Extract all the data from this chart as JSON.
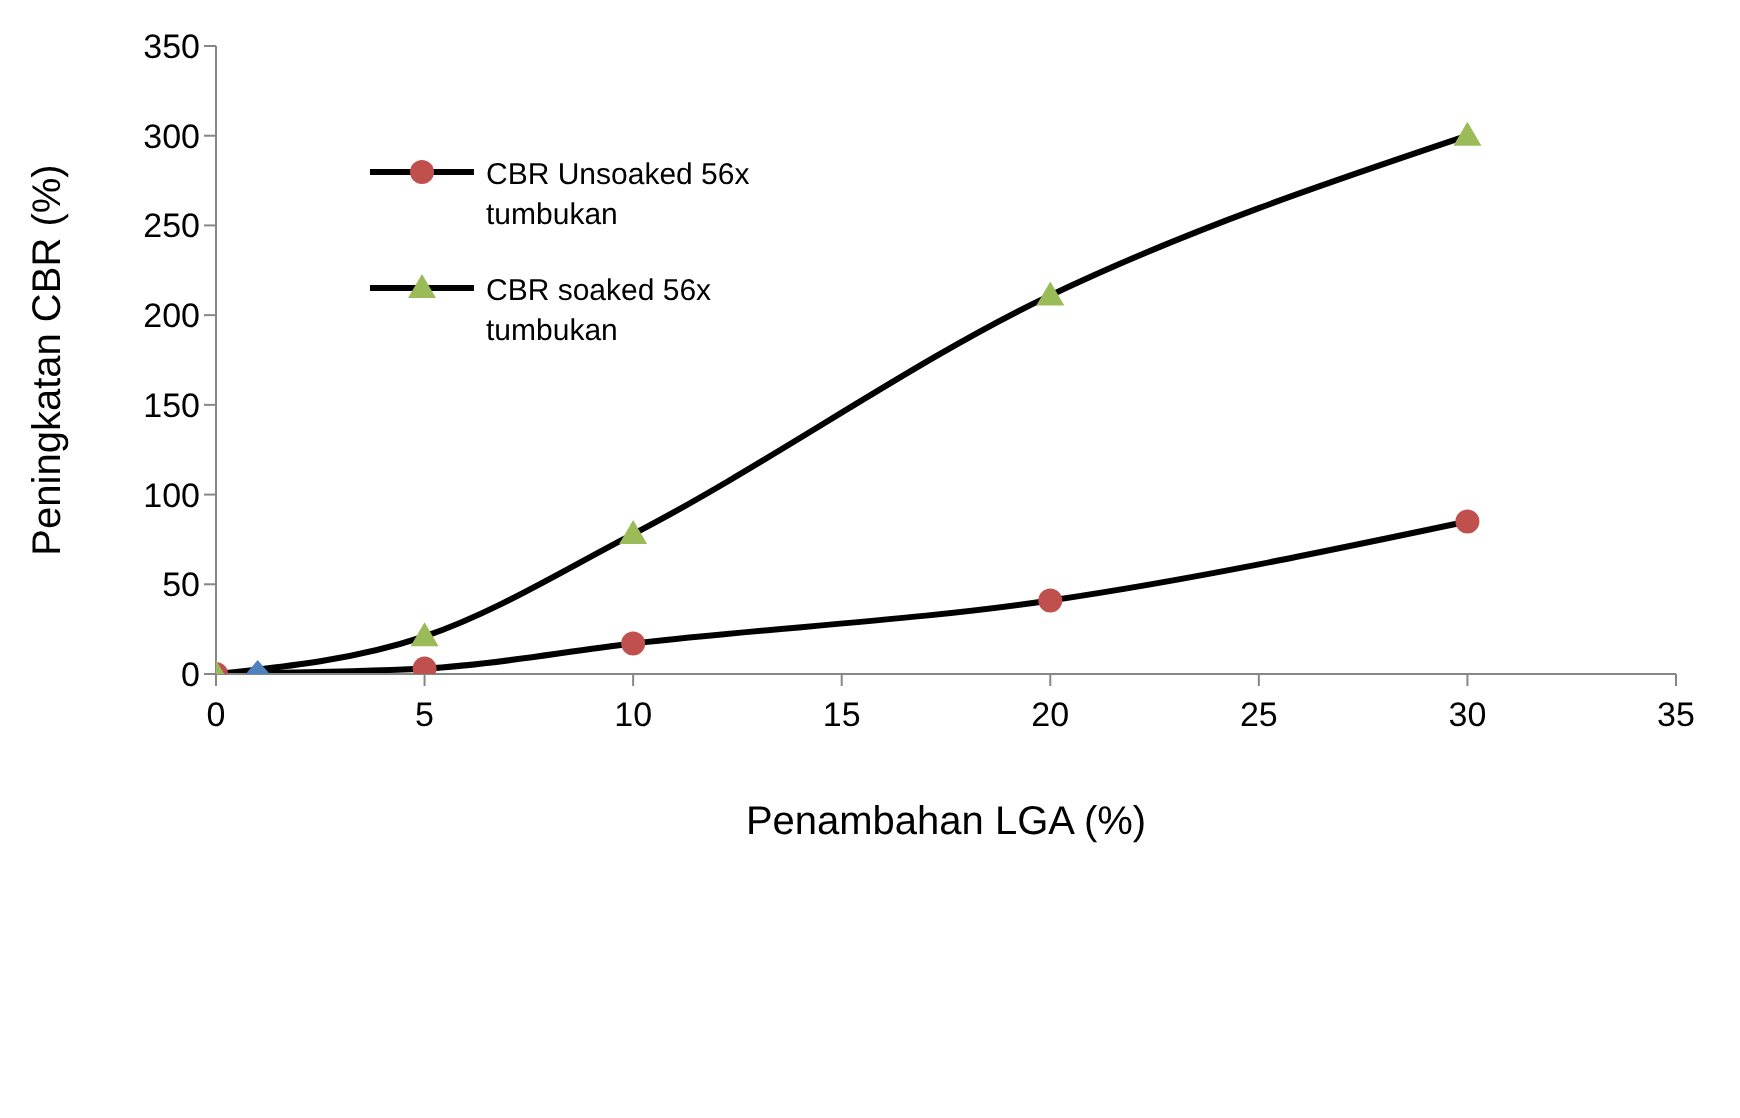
{
  "chart_data": {
    "type": "line",
    "xlabel": "Penambahan LGA  (%)",
    "ylabel": "Peningkatan CBR (%)",
    "xlim": [
      0,
      35
    ],
    "xticks": [
      0,
      5,
      10,
      15,
      20,
      25,
      30,
      35
    ],
    "ylim": [
      0,
      350
    ],
    "yticks": [
      0,
      50,
      100,
      150,
      200,
      250,
      300,
      350
    ],
    "legend": "top left",
    "series": [
      {
        "name": "CBR Unsoaked 56x tumbukan",
        "marker": "circle",
        "color": "#000000",
        "colors": [
          "#c0504d",
          "#c0504d",
          "#c0504d",
          "#c0504d",
          "#c0504d"
        ],
        "x": [
          0,
          5,
          10,
          20,
          30
        ],
        "values": [
          0,
          3,
          17,
          41,
          85
        ]
      },
      {
        "name": "CBR soaked 56x tumbukan",
        "marker": "triangle",
        "color": "#000000",
        "colors": [
          "#9bbb59",
          "#9bbb59",
          "#9bbb59",
          "#9bbb59",
          "#9bbb59"
        ],
        "x": [
          0,
          5,
          10,
          20,
          30
        ],
        "values": [
          0,
          21,
          78,
          211,
          300
        ]
      },
      {
        "type": "scatter",
        "marker": "diamond",
        "color": "#4f81bd",
        "x": [
          1
        ],
        "values": [
          0
        ]
      }
    ]
  }
}
